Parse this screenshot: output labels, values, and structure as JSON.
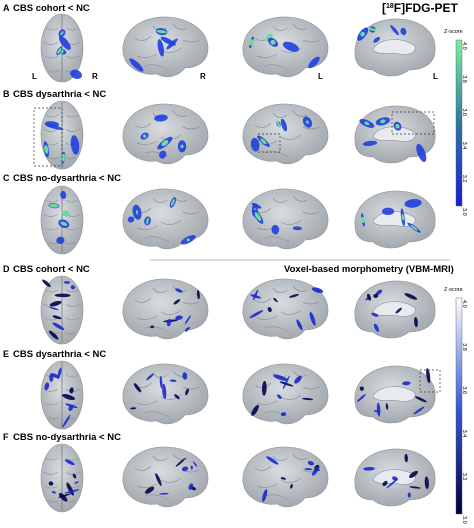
{
  "figure": {
    "pet_header": {
      "prefix": "[",
      "sup": "18",
      "suffix": "F]FDG-PET"
    },
    "vbm_header": "Voxel-based morphometry (VBM-MRI)",
    "side_labels": [
      "L",
      "R",
      "R",
      "L",
      "L"
    ],
    "panels": [
      {
        "letter": "A",
        "title": "CBS cohort < NC"
      },
      {
        "letter": "B",
        "title": "CBS dysarthria < NC"
      },
      {
        "letter": "C",
        "title": "CBS no-dysarthria < NC"
      },
      {
        "letter": "D",
        "title": "CBS cohort < NC"
      },
      {
        "letter": "E",
        "title": "CBS dysarthria < NC"
      },
      {
        "letter": "F",
        "title": "CBS no-dysarthria < NC"
      }
    ],
    "colorbar_pet": {
      "label": "Z-score",
      "ticks": [
        "4.0",
        "3.8",
        "3.6",
        "3.4",
        "3.2",
        "3.0"
      ],
      "color_top": "#7ef09a",
      "color_mid": "#2a7aa0",
      "color_bottom": "#1a1ad8"
    },
    "colorbar_vbm": {
      "label": "Z-score",
      "ticks": [
        "4.0",
        "3.8",
        "3.6",
        "3.4",
        "3.2",
        "3.0"
      ],
      "color_top": "#ffffff",
      "color_mid": "#3a5ad8",
      "color_bottom": "#000040"
    },
    "colors": {
      "brain": "#b9bec4",
      "pet_hot": "#6fe39a",
      "pet_blue": "#1f3fe0",
      "vbm_blue": "#1a2bd0",
      "vbm_dark": "#050a50"
    }
  }
}
